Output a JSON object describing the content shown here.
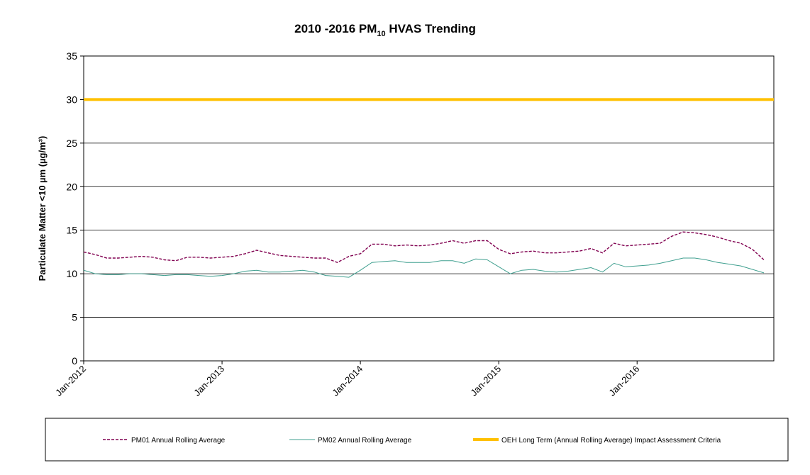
{
  "chart_data": {
    "type": "line",
    "title": {
      "main": "2010 -2016 PM",
      "sub": "10",
      "rest": " HVAS Trending"
    },
    "y_label": "Particulate Matter <10 µm (µg/m³)",
    "categories": [
      "Jan-2012",
      null,
      null,
      null,
      null,
      null,
      null,
      null,
      null,
      null,
      null,
      null,
      "Jan-2013",
      null,
      null,
      null,
      null,
      null,
      null,
      null,
      null,
      null,
      null,
      null,
      "Jan-2014",
      null,
      null,
      null,
      null,
      null,
      null,
      null,
      null,
      null,
      null,
      null,
      "Jan-2015",
      null,
      null,
      null,
      null,
      null,
      null,
      null,
      null,
      null,
      null,
      null,
      "Jan-2016",
      null,
      null,
      null,
      null,
      null,
      null,
      null,
      null,
      null,
      null,
      null
    ],
    "ylim": [
      0,
      35
    ],
    "yticks": [
      0,
      5,
      10,
      15,
      20,
      25,
      30,
      35
    ],
    "grid": true,
    "legend": "bottom",
    "series": [
      {
        "name": "PM01 Annual Rolling Average",
        "color": "#800050",
        "dash": true,
        "values": [
          12.5,
          12.2,
          11.8,
          11.8,
          11.9,
          12.0,
          11.9,
          11.6,
          11.5,
          11.9,
          11.9,
          11.8,
          11.9,
          12.0,
          12.3,
          12.7,
          12.4,
          12.1,
          12.0,
          11.9,
          11.8,
          11.8,
          11.3,
          12.0,
          12.3,
          13.4,
          13.4,
          13.2,
          13.3,
          13.2,
          13.3,
          13.5,
          13.8,
          13.5,
          13.8,
          13.8,
          12.8,
          12.3,
          12.5,
          12.6,
          12.4,
          12.4,
          12.5,
          12.6,
          12.9,
          12.4,
          13.5,
          13.2,
          13.3,
          13.4,
          13.5,
          14.3,
          14.8,
          14.7,
          14.5,
          14.2,
          13.8,
          13.5,
          12.8,
          11.6
        ]
      },
      {
        "name": "PM02 Annual Rolling Average",
        "color": "#3f9f8f",
        "dash": false,
        "values": [
          10.4,
          10.0,
          9.9,
          9.9,
          10.0,
          10.0,
          9.9,
          9.8,
          9.9,
          9.9,
          9.8,
          9.7,
          9.8,
          10.0,
          10.3,
          10.4,
          10.2,
          10.2,
          10.3,
          10.4,
          10.2,
          9.8,
          9.7,
          9.6,
          10.4,
          11.3,
          11.4,
          11.5,
          11.3,
          11.3,
          11.3,
          11.5,
          11.5,
          11.2,
          11.7,
          11.6,
          10.8,
          10.0,
          10.4,
          10.5,
          10.3,
          10.2,
          10.3,
          10.5,
          10.7,
          10.2,
          11.2,
          10.8,
          10.9,
          11.0,
          11.2,
          11.5,
          11.8,
          11.8,
          11.6,
          11.3,
          11.1,
          10.9,
          10.5,
          10.1
        ]
      }
    ],
    "criteria": {
      "name": "OEH Long Term (Annual Rolling Average) Impact Assessment Criteria",
      "value": 30,
      "color": "#ffc000"
    }
  }
}
